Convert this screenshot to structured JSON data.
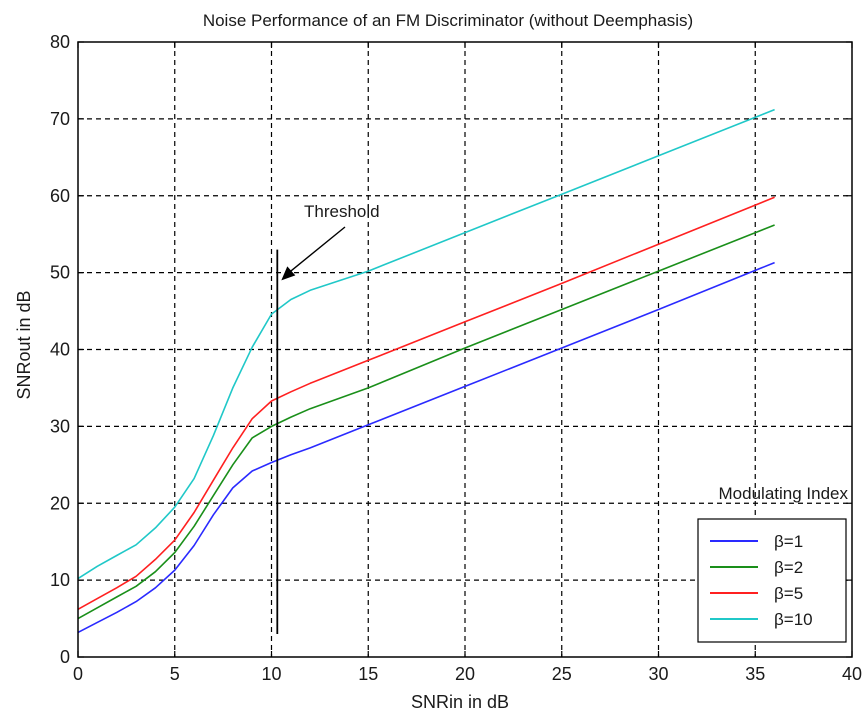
{
  "chart_data": {
    "type": "line",
    "title": "Noise Performance of an FM Discriminator (without Deemphasis)",
    "xlabel": "SNRin in dB",
    "ylabel": "SNRout in dB",
    "xlim": [
      0,
      40
    ],
    "ylim": [
      0,
      80
    ],
    "xticks": [
      "0",
      "5",
      "10",
      "15",
      "20",
      "25",
      "30",
      "35",
      "40"
    ],
    "yticks": [
      "0",
      "10",
      "20",
      "30",
      "40",
      "50",
      "60",
      "70",
      "80"
    ],
    "grid": true,
    "legend_title": "Modulating Index",
    "legend_position": "bottom-right",
    "series": [
      {
        "name": "β=1",
        "color": "#2a2aff",
        "x": [
          0,
          1,
          2,
          3,
          4,
          5,
          6,
          7,
          8,
          9,
          10,
          11,
          12,
          15,
          20,
          25,
          30,
          36
        ],
        "y": [
          3.2,
          4.5,
          5.8,
          7.2,
          9.0,
          11.3,
          14.5,
          18.5,
          22.0,
          24.2,
          25.3,
          26.3,
          27.2,
          30.2,
          35.2,
          40.2,
          45.2,
          51.3
        ]
      },
      {
        "name": "β=2",
        "color": "#1a8f1a",
        "x": [
          0,
          1,
          2,
          3,
          4,
          5,
          6,
          7,
          8,
          9,
          10,
          11,
          12,
          15,
          20,
          25,
          30,
          36
        ],
        "y": [
          5.0,
          6.4,
          7.8,
          9.2,
          11.1,
          13.6,
          17.0,
          21.0,
          25.0,
          28.5,
          30.0,
          31.2,
          32.3,
          35.0,
          40.2,
          45.2,
          50.2,
          56.2
        ]
      },
      {
        "name": "β=5",
        "color": "#ff2020",
        "x": [
          0,
          1,
          2,
          3,
          4,
          5,
          6,
          7,
          8,
          9,
          10,
          11,
          12,
          15,
          20,
          25,
          30,
          36
        ],
        "y": [
          6.2,
          7.6,
          9.0,
          10.5,
          12.7,
          15.2,
          18.8,
          23.0,
          27.2,
          31.0,
          33.3,
          34.5,
          35.6,
          38.6,
          43.6,
          48.6,
          53.7,
          59.8
        ]
      },
      {
        "name": "β=10",
        "color": "#20c8c8",
        "x": [
          0,
          1,
          2,
          3,
          4,
          5,
          6,
          7,
          8,
          9,
          10,
          11,
          12,
          15,
          20,
          25,
          30,
          36
        ],
        "y": [
          10.2,
          11.8,
          13.2,
          14.6,
          16.8,
          19.5,
          23.2,
          28.8,
          35.0,
          40.3,
          44.6,
          46.5,
          47.7,
          50.2,
          55.2,
          60.2,
          65.2,
          71.2
        ]
      }
    ],
    "annotations": [
      {
        "text": "Threshold",
        "type": "vertical-line",
        "x": 10.3,
        "y_from": 3,
        "y_to": 53,
        "arrow_to_x": 10.3,
        "arrow_to_y": 49
      }
    ]
  }
}
